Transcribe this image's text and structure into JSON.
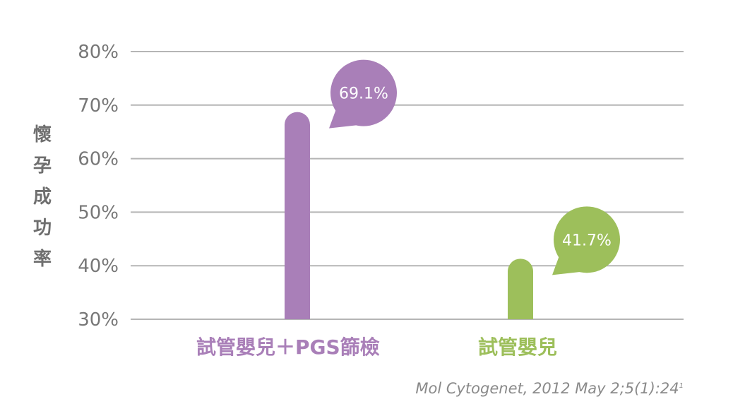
{
  "chart_data": {
    "type": "bar",
    "title": "",
    "ylabel": "懷孕成功率",
    "ylim": [
      30,
      80
    ],
    "yticks": [
      "30%",
      "40%",
      "50%",
      "60%",
      "70%",
      "80%"
    ],
    "ytick_values": [
      30,
      40,
      50,
      60,
      70,
      80
    ],
    "grid": true,
    "categories": [
      "試管嬰兒＋PGS篩檢",
      "試管嬰兒"
    ],
    "values": [
      69.1,
      41.7
    ],
    "data_labels": [
      "69.1%",
      "41.7%"
    ],
    "colors": [
      "#a97fb8",
      "#9dbf5b"
    ]
  },
  "source": {
    "text": "Mol Cytogenet, 2012 May 2;5(1):24",
    "superscript": "1"
  },
  "colors": {
    "axis_text": "#777777",
    "gridline": "#b5b5b5",
    "ylabel": "#6f6f6f"
  }
}
